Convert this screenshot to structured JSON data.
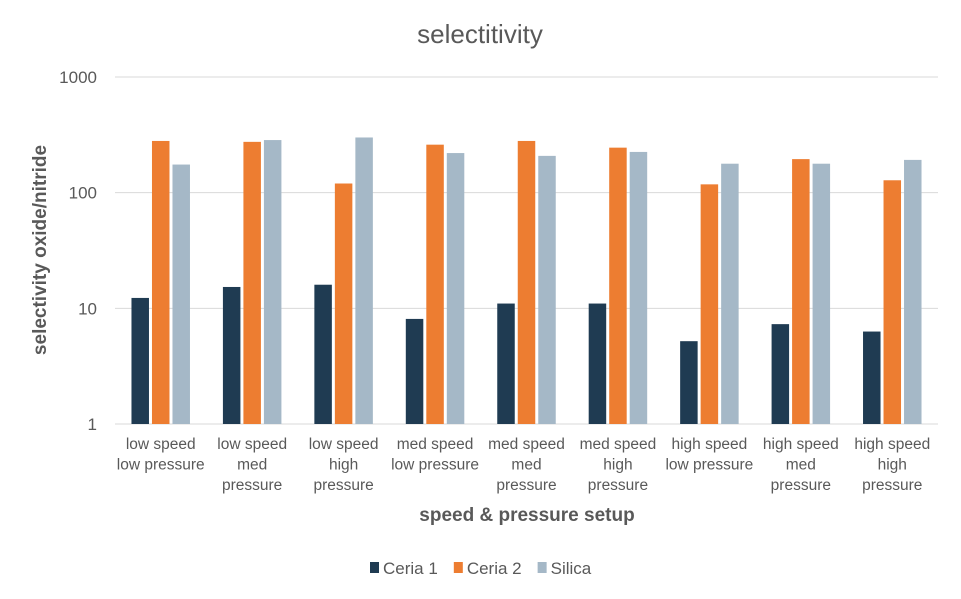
{
  "chart_data": {
    "type": "bar",
    "title": "selectitivity",
    "xlabel": "speed & pressure setup",
    "ylabel": "selectivity oxide/nitride",
    "yscale": "log",
    "ylim": [
      1,
      1000
    ],
    "yticks": [
      "1",
      "10",
      "100",
      "1000"
    ],
    "grid": true,
    "legend_position": "bottom",
    "categories": [
      [
        "low speed",
        "low pressure"
      ],
      [
        "low speed",
        "med",
        "pressure"
      ],
      [
        "low speed",
        "high",
        "pressure"
      ],
      [
        "med speed",
        "low pressure"
      ],
      [
        "med speed",
        "med",
        "pressure"
      ],
      [
        "med speed",
        "high",
        "pressure"
      ],
      [
        "high speed",
        "low pressure"
      ],
      [
        "high speed",
        "med",
        "pressure"
      ],
      [
        "high speed",
        "high",
        "pressure"
      ]
    ],
    "series": [
      {
        "name": "Ceria 1",
        "color": "#1f3b52",
        "values": [
          12.3,
          15.3,
          16.0,
          8.1,
          11.0,
          11.0,
          5.2,
          7.3,
          6.3
        ]
      },
      {
        "name": "Ceria 2",
        "color": "#ed7d31",
        "values": [
          280,
          275,
          120,
          260,
          280,
          245,
          118,
          195,
          128
        ]
      },
      {
        "name": "Silica",
        "color": "#a5b8c7",
        "values": [
          175,
          285,
          300,
          220,
          208,
          225,
          178,
          178,
          192
        ]
      }
    ]
  }
}
